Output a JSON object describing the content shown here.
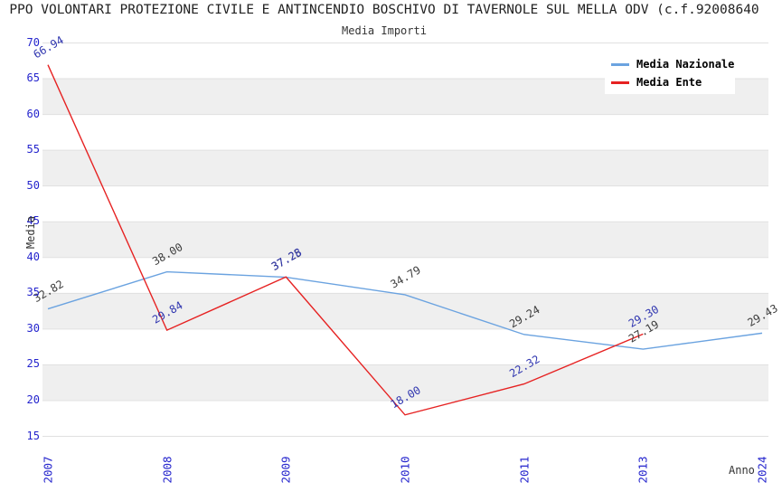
{
  "header": {
    "title": "PPO VOLONTARI PROTEZIONE CIVILE E ANTINCENDIO BOSCHIVO DI TAVERNOLE SUL MELLA ODV (c.f.92008640",
    "subtitle": "Media Importi"
  },
  "axes": {
    "y_title": "Media",
    "x_title": "Anno",
    "y_ticks": [
      15,
      20,
      25,
      30,
      35,
      40,
      45,
      50,
      55,
      60,
      65,
      70
    ],
    "x_ticks": [
      "2007",
      "2008",
      "2009",
      "2010",
      "2011",
      "2013",
      "2024"
    ]
  },
  "legend": {
    "position": "top-right",
    "items": [
      {
        "label": "Media Nazionale",
        "color": "#6ba3e0"
      },
      {
        "label": "Media Ente",
        "color": "#e62222"
      }
    ]
  },
  "chart_data": {
    "type": "line",
    "title": "Media Importi",
    "xlabel": "Anno",
    "ylabel": "Media",
    "categories": [
      "2007",
      "2008",
      "2009",
      "2010",
      "2011",
      "2013",
      "2024"
    ],
    "ylim": [
      15,
      70
    ],
    "ytick_step": 5,
    "grid": "horizontal-bands-alternating",
    "legend_position": "top-right",
    "series": [
      {
        "name": "Media Nazionale",
        "color": "#6ba3e0",
        "label_color": "#3d3d3d",
        "values": [
          32.82,
          38.0,
          37.25,
          34.79,
          29.24,
          27.19,
          29.43
        ]
      },
      {
        "name": "Media Ente",
        "color": "#e62222",
        "label_color": "#3137b0",
        "values": [
          66.94,
          29.84,
          37.28,
          18.0,
          22.32,
          29.3,
          null
        ]
      }
    ]
  },
  "colors": {
    "background": "#ffffff",
    "band_gray": "#efefef",
    "gridline": "#e0e0e0",
    "tick_blue": "#2424cd"
  }
}
